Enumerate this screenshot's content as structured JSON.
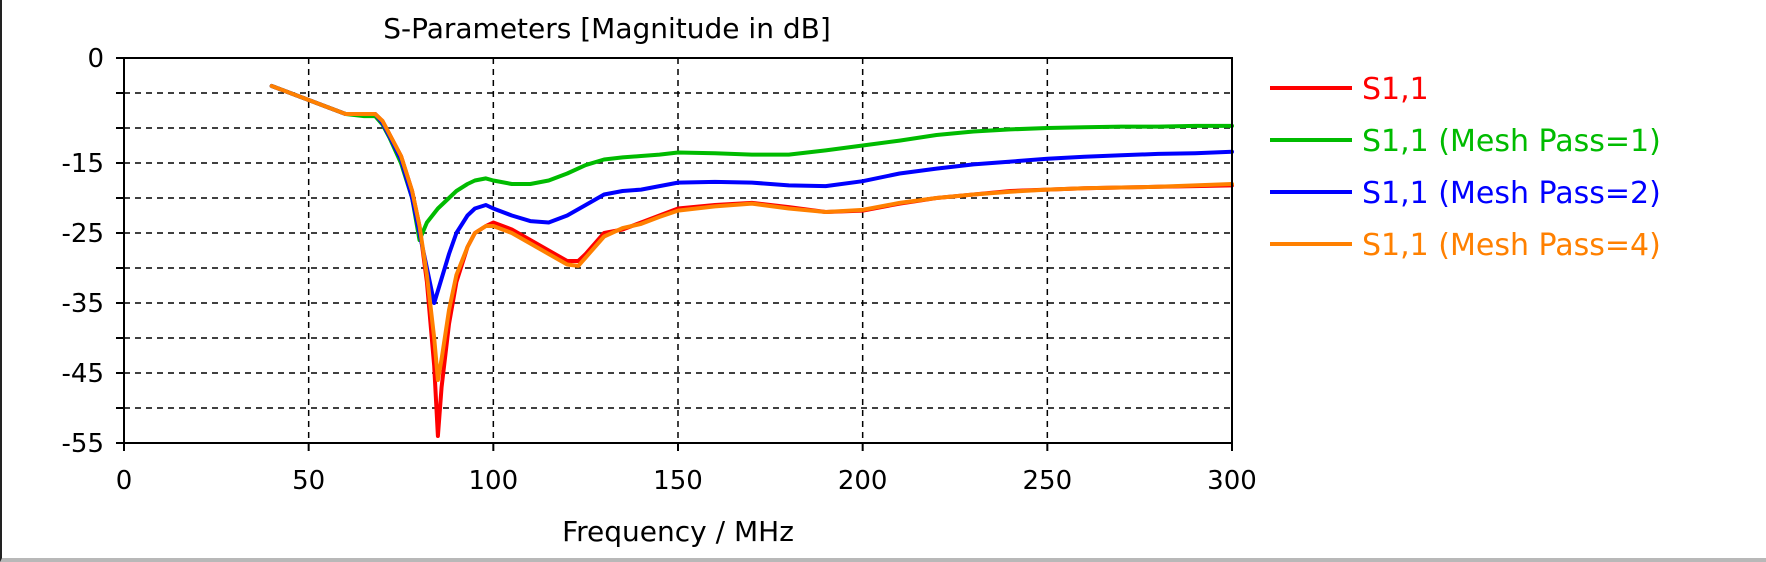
{
  "chart_data": {
    "type": "line",
    "title": "S-Parameters [Magnitude in dB]",
    "xlabel": "Frequency / MHz",
    "ylabel": "",
    "xlim": [
      0,
      300
    ],
    "ylim": [
      -55,
      0
    ],
    "x_ticks": [
      0,
      50,
      100,
      150,
      200,
      250,
      300
    ],
    "y_ticks": [
      0,
      -15,
      -25,
      -35,
      -45,
      -55
    ],
    "grid": true,
    "legend_position": "right",
    "series": [
      {
        "name": "S1,1",
        "color": "#ff0000",
        "x": [
          40,
          45,
          50,
          55,
          60,
          65,
          68,
          70,
          72,
          75,
          78,
          80,
          82,
          84,
          85,
          86,
          88,
          90,
          93,
          95,
          98,
          100,
          105,
          110,
          115,
          120,
          123,
          125,
          130,
          135,
          140,
          145,
          150,
          160,
          170,
          180,
          190,
          200,
          210,
          220,
          230,
          240,
          250,
          260,
          270,
          280,
          290,
          300
        ],
        "y": [
          -4,
          -5,
          -6,
          -7,
          -8,
          -8,
          -8,
          -9,
          -11,
          -14,
          -19,
          -24,
          -32,
          -44,
          -54,
          -47,
          -38,
          -32,
          -27,
          -25,
          -24,
          -23.5,
          -24.5,
          -26,
          -27.5,
          -29,
          -29,
          -28,
          -25,
          -24.5,
          -23.5,
          -22.5,
          -21.5,
          -21,
          -20.7,
          -21.3,
          -22,
          -21.8,
          -20.8,
          -20,
          -19.5,
          -19,
          -18.8,
          -18.6,
          -18.5,
          -18.4,
          -18.3,
          -18.2
        ]
      },
      {
        "name": "S1,1 (Mesh Pass=1)",
        "color": "#00bb00",
        "x": [
          40,
          45,
          50,
          55,
          60,
          65,
          68,
          70,
          72,
          75,
          78,
          80,
          82,
          85,
          88,
          90,
          93,
          95,
          98,
          100,
          105,
          110,
          115,
          120,
          125,
          130,
          135,
          140,
          145,
          150,
          160,
          170,
          180,
          190,
          200,
          210,
          220,
          230,
          240,
          250,
          260,
          270,
          280,
          290,
          300
        ],
        "y": [
          -4,
          -5,
          -6,
          -7,
          -8,
          -8.3,
          -8.3,
          -9.5,
          -11.5,
          -15,
          -20,
          -26,
          -23.5,
          -21.5,
          -20,
          -19,
          -18,
          -17.5,
          -17.2,
          -17.5,
          -18,
          -18,
          -17.5,
          -16.5,
          -15.3,
          -14.5,
          -14.2,
          -14,
          -13.8,
          -13.5,
          -13.6,
          -13.8,
          -13.8,
          -13.2,
          -12.5,
          -11.8,
          -11,
          -10.5,
          -10.2,
          -10,
          -9.9,
          -9.8,
          -9.8,
          -9.7,
          -9.7
        ]
      },
      {
        "name": "S1,1 (Mesh Pass=2)",
        "color": "#0000ff",
        "x": [
          40,
          45,
          50,
          55,
          60,
          65,
          68,
          70,
          72,
          75,
          78,
          80,
          82,
          84,
          86,
          88,
          90,
          93,
          95,
          98,
          100,
          105,
          110,
          115,
          120,
          125,
          130,
          135,
          140,
          145,
          150,
          160,
          170,
          180,
          190,
          200,
          210,
          220,
          230,
          240,
          250,
          260,
          270,
          280,
          290,
          300
        ],
        "y": [
          -4,
          -5,
          -6,
          -7,
          -8,
          -8,
          -8,
          -9.3,
          -11.3,
          -14.5,
          -20,
          -25,
          -30,
          -35,
          -31.5,
          -28,
          -25,
          -22.5,
          -21.5,
          -21,
          -21.5,
          -22.5,
          -23.3,
          -23.5,
          -22.5,
          -21,
          -19.5,
          -19,
          -18.8,
          -18.3,
          -17.8,
          -17.7,
          -17.8,
          -18.2,
          -18.3,
          -17.6,
          -16.5,
          -15.8,
          -15.2,
          -14.8,
          -14.4,
          -14.1,
          -13.9,
          -13.7,
          -13.6,
          -13.4
        ]
      },
      {
        "name": "S1,1 (Mesh Pass=4)",
        "color": "#ff8000",
        "x": [
          40,
          45,
          50,
          55,
          60,
          65,
          68,
          70,
          72,
          75,
          78,
          80,
          82,
          84,
          85,
          86,
          88,
          90,
          93,
          95,
          98,
          100,
          105,
          110,
          115,
          120,
          123,
          125,
          130,
          135,
          140,
          145,
          150,
          160,
          170,
          180,
          190,
          200,
          210,
          220,
          230,
          240,
          250,
          260,
          270,
          280,
          290,
          300
        ],
        "y": [
          -4,
          -5,
          -6,
          -7,
          -8,
          -8,
          -8,
          -9,
          -11,
          -14,
          -19,
          -24,
          -31,
          -40,
          -46,
          -43,
          -36,
          -31,
          -27,
          -25,
          -24,
          -24,
          -25,
          -26.5,
          -28,
          -29.5,
          -29.7,
          -28.5,
          -25.5,
          -24.3,
          -23.7,
          -22.7,
          -21.8,
          -21.2,
          -20.8,
          -21.5,
          -22,
          -21.7,
          -20.7,
          -20,
          -19.5,
          -19.1,
          -18.8,
          -18.6,
          -18.5,
          -18.4,
          -18.2,
          -18
        ]
      }
    ]
  }
}
